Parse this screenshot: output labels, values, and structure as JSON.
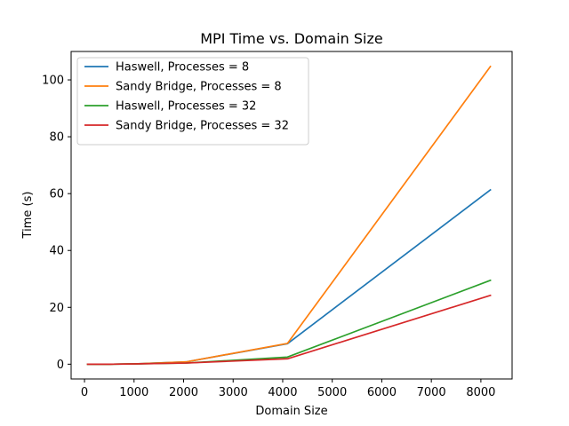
{
  "chart_data": {
    "type": "line",
    "title": "MPI Time vs. Domain Size",
    "xlabel": "Domain Size",
    "ylabel": "Time (s)",
    "xlim": [
      -270,
      8630
    ],
    "ylim": [
      -5.2,
      110
    ],
    "xticks": [
      0,
      1000,
      2000,
      3000,
      4000,
      5000,
      6000,
      7000,
      8000
    ],
    "yticks": [
      0,
      20,
      40,
      60,
      80,
      100
    ],
    "grid": false,
    "legend_position": "top-left",
    "series": [
      {
        "name": "Haswell, Processes = 8",
        "color": "#1f77b4",
        "x": [
          64,
          128,
          256,
          512,
          1024,
          2048,
          4096,
          8192
        ],
        "y": [
          0.0,
          0.0,
          0.0,
          0.0,
          0.1,
          0.8,
          7.2,
          61.3
        ]
      },
      {
        "name": "Sandy Bridge, Processes = 8",
        "color": "#ff7f0e",
        "x": [
          64,
          128,
          256,
          512,
          1024,
          2048,
          4096,
          8192
        ],
        "y": [
          0.0,
          0.0,
          0.0,
          0.0,
          0.1,
          0.8,
          7.3,
          104.7
        ]
      },
      {
        "name": "Haswell, Processes = 32",
        "color": "#2ca02c",
        "x": [
          64,
          128,
          256,
          512,
          1024,
          2048,
          4096,
          8192
        ],
        "y": [
          0.0,
          0.0,
          0.0,
          0.0,
          0.1,
          0.4,
          2.5,
          29.5
        ]
      },
      {
        "name": "Sandy Bridge, Processes = 32",
        "color": "#d62728",
        "x": [
          64,
          128,
          256,
          512,
          1024,
          2048,
          4096,
          8192
        ],
        "y": [
          0.0,
          0.0,
          0.0,
          0.0,
          0.1,
          0.4,
          1.9,
          24.2
        ]
      }
    ]
  }
}
